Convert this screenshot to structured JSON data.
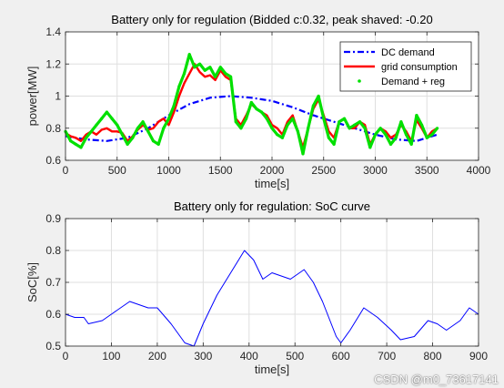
{
  "chart_data": [
    {
      "type": "line",
      "title": "Battery only for regulation (Bidded c:0.32, peak shaved: -0.20",
      "xlabel": "time[s]",
      "ylabel": "power[MW]",
      "xlim": [
        0,
        4000
      ],
      "ylim": [
        0.6,
        1.4
      ],
      "xticks": [
        0,
        500,
        1000,
        1500,
        2000,
        2500,
        3000,
        3500,
        4000
      ],
      "yticks": [
        0.6,
        0.8,
        1,
        1.2,
        1.4
      ],
      "grid": true,
      "legend_position": "top-right",
      "series": [
        {
          "name": "DC demand",
          "color": "#0000ff",
          "style": "dash-dot",
          "x": [
            0,
            200,
            400,
            600,
            800,
            1000,
            1200,
            1400,
            1600,
            1800,
            2000,
            2200,
            2400,
            2600,
            2800,
            3000,
            3200,
            3400,
            3600
          ],
          "y": [
            0.75,
            0.73,
            0.72,
            0.74,
            0.8,
            0.88,
            0.95,
            0.99,
            1.0,
            0.99,
            0.97,
            0.93,
            0.88,
            0.84,
            0.8,
            0.76,
            0.73,
            0.72,
            0.76
          ]
        },
        {
          "name": "grid consumption",
          "color": "#ff0000",
          "style": "solid",
          "x": [
            0,
            50,
            100,
            150,
            200,
            250,
            300,
            350,
            400,
            450,
            500,
            550,
            600,
            650,
            700,
            750,
            800,
            850,
            900,
            950,
            1000,
            1050,
            1100,
            1150,
            1200,
            1250,
            1300,
            1350,
            1400,
            1450,
            1500,
            1550,
            1600,
            1650,
            1700,
            1750,
            1800,
            1850,
            1900,
            1950,
            2000,
            2050,
            2100,
            2150,
            2200,
            2250,
            2300,
            2350,
            2400,
            2450,
            2500,
            2550,
            2600,
            2650,
            2700,
            2750,
            2800,
            2850,
            2900,
            2950,
            3000,
            3050,
            3100,
            3150,
            3200,
            3250,
            3300,
            3350,
            3400,
            3450,
            3500,
            3550,
            3600
          ],
          "y": [
            0.77,
            0.75,
            0.74,
            0.72,
            0.76,
            0.78,
            0.76,
            0.79,
            0.8,
            0.78,
            0.78,
            0.77,
            0.72,
            0.75,
            0.79,
            0.82,
            0.79,
            0.8,
            0.84,
            0.86,
            0.82,
            0.9,
            1.0,
            1.08,
            1.14,
            1.2,
            1.15,
            1.12,
            1.13,
            1.1,
            1.16,
            1.12,
            1.1,
            0.86,
            0.82,
            0.88,
            0.95,
            0.92,
            0.9,
            0.88,
            0.82,
            0.8,
            0.76,
            0.84,
            0.88,
            0.78,
            0.68,
            0.8,
            0.92,
            0.98,
            0.88,
            0.78,
            0.74,
            0.84,
            0.86,
            0.8,
            0.8,
            0.84,
            0.82,
            0.7,
            0.76,
            0.8,
            0.78,
            0.74,
            0.76,
            0.82,
            0.78,
            0.72,
            0.85,
            0.8,
            0.74,
            0.78,
            0.8
          ]
        },
        {
          "name": "Demand + reg",
          "color": "#00e000",
          "style": "points",
          "x": [
            0,
            50,
            100,
            150,
            200,
            250,
            300,
            350,
            400,
            450,
            500,
            550,
            600,
            650,
            700,
            750,
            800,
            850,
            900,
            950,
            1000,
            1050,
            1100,
            1150,
            1200,
            1250,
            1300,
            1350,
            1400,
            1450,
            1500,
            1550,
            1600,
            1650,
            1700,
            1750,
            1800,
            1850,
            1900,
            1950,
            2000,
            2050,
            2100,
            2150,
            2200,
            2250,
            2300,
            2350,
            2400,
            2450,
            2500,
            2550,
            2600,
            2650,
            2700,
            2750,
            2800,
            2850,
            2900,
            2950,
            3000,
            3050,
            3100,
            3150,
            3200,
            3250,
            3300,
            3350,
            3400,
            3450,
            3500,
            3550,
            3600
          ],
          "y": [
            0.78,
            0.72,
            0.7,
            0.68,
            0.74,
            0.78,
            0.82,
            0.86,
            0.9,
            0.86,
            0.82,
            0.76,
            0.7,
            0.74,
            0.8,
            0.84,
            0.78,
            0.72,
            0.7,
            0.8,
            0.86,
            0.94,
            1.06,
            1.14,
            1.26,
            1.18,
            1.2,
            1.16,
            1.18,
            1.12,
            1.18,
            1.14,
            1.12,
            0.84,
            0.8,
            0.86,
            0.96,
            0.92,
            0.9,
            0.86,
            0.8,
            0.76,
            0.74,
            0.82,
            0.86,
            0.78,
            0.64,
            0.8,
            0.94,
            1.0,
            0.86,
            0.74,
            0.7,
            0.84,
            0.86,
            0.8,
            0.82,
            0.84,
            0.8,
            0.68,
            0.76,
            0.8,
            0.76,
            0.7,
            0.74,
            0.84,
            0.76,
            0.7,
            0.88,
            0.82,
            0.74,
            0.76,
            0.8
          ]
        }
      ]
    },
    {
      "type": "line",
      "title": "Battery only for regulation: SoC curve",
      "xlabel": "time[s]",
      "ylabel": "SoC[%]",
      "xlim": [
        0,
        900
      ],
      "ylim": [
        0.5,
        0.9
      ],
      "xticks": [
        0,
        100,
        200,
        300,
        400,
        500,
        600,
        700,
        800,
        900
      ],
      "yticks": [
        0.5,
        0.6,
        0.7,
        0.8,
        0.9
      ],
      "grid": true,
      "series": [
        {
          "color": "#0000ff",
          "style": "solid",
          "x": [
            0,
            20,
            40,
            50,
            80,
            100,
            140,
            160,
            180,
            200,
            230,
            260,
            280,
            300,
            330,
            360,
            390,
            410,
            430,
            450,
            470,
            490,
            510,
            520,
            540,
            560,
            590,
            600,
            620,
            650,
            680,
            710,
            730,
            760,
            790,
            810,
            830,
            860,
            880,
            900
          ],
          "y": [
            0.6,
            0.59,
            0.59,
            0.57,
            0.58,
            0.6,
            0.64,
            0.63,
            0.62,
            0.62,
            0.57,
            0.51,
            0.5,
            0.57,
            0.66,
            0.73,
            0.8,
            0.77,
            0.71,
            0.73,
            0.72,
            0.71,
            0.73,
            0.74,
            0.7,
            0.64,
            0.53,
            0.51,
            0.55,
            0.62,
            0.59,
            0.55,
            0.52,
            0.53,
            0.58,
            0.57,
            0.55,
            0.58,
            0.62,
            0.6
          ]
        }
      ]
    }
  ],
  "watermark": "CSDN @m0_73617141"
}
